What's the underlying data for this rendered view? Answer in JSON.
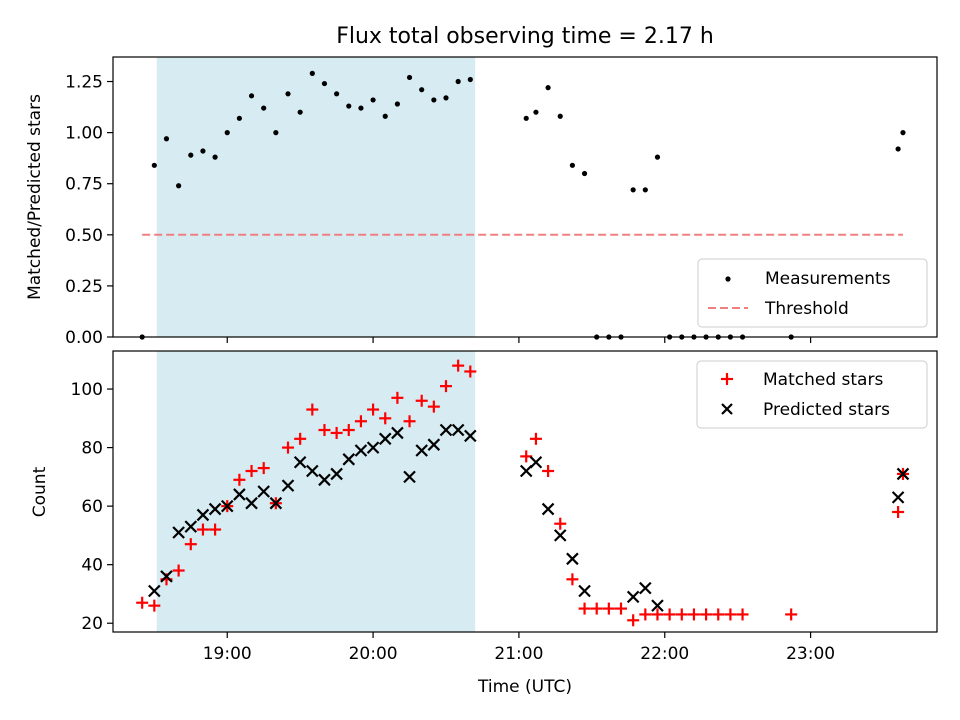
{
  "title": "Flux total observing time = 2.17 h",
  "colors": {
    "shade": "#add8e6",
    "threshold": "#f08080",
    "matched": "#ff0000",
    "predicted": "#000000",
    "measurement": "#000000"
  },
  "chart_data": [
    {
      "type": "scatter",
      "title": "Flux total observing time = 2.17 h",
      "xlabel": "",
      "ylabel": "Matched/Predicted stars",
      "xlim": [
        "18:13",
        "23:52"
      ],
      "ylim": [
        0,
        1.37
      ],
      "y_ticks": [
        0.0,
        0.25,
        0.5,
        0.75,
        1.0,
        1.25
      ],
      "y_tick_labels": [
        "0.00",
        "0.25",
        "0.50",
        "0.75",
        "1.00",
        "1.25"
      ],
      "shaded_interval": [
        "18:31",
        "20:42"
      ],
      "legend": {
        "position": "lower-right",
        "entries": [
          "Measurements",
          "Threshold"
        ]
      },
      "series": [
        {
          "name": "Measurements",
          "marker": "dot",
          "points": [
            [
              "18:25",
              0.0
            ],
            [
              "18:30",
              0.84
            ],
            [
              "18:35",
              0.97
            ],
            [
              "18:40",
              0.74
            ],
            [
              "18:45",
              0.89
            ],
            [
              "18:50",
              0.91
            ],
            [
              "18:55",
              0.88
            ],
            [
              "19:00",
              1.0
            ],
            [
              "19:05",
              1.07
            ],
            [
              "19:10",
              1.18
            ],
            [
              "19:15",
              1.12
            ],
            [
              "19:20",
              1.0
            ],
            [
              "19:25",
              1.19
            ],
            [
              "19:30",
              1.1
            ],
            [
              "19:35",
              1.29
            ],
            [
              "19:40",
              1.24
            ],
            [
              "19:45",
              1.19
            ],
            [
              "19:50",
              1.13
            ],
            [
              "19:55",
              1.12
            ],
            [
              "20:00",
              1.16
            ],
            [
              "20:05",
              1.08
            ],
            [
              "20:10",
              1.14
            ],
            [
              "20:15",
              1.27
            ],
            [
              "20:20",
              1.21
            ],
            [
              "20:25",
              1.16
            ],
            [
              "20:30",
              1.17
            ],
            [
              "20:35",
              1.25
            ],
            [
              "20:40",
              1.26
            ],
            [
              "21:03",
              1.07
            ],
            [
              "21:07",
              1.1
            ],
            [
              "21:12",
              1.22
            ],
            [
              "21:17",
              1.08
            ],
            [
              "21:22",
              0.84
            ],
            [
              "21:27",
              0.8
            ],
            [
              "21:32",
              0.0
            ],
            [
              "21:37",
              0.0
            ],
            [
              "21:42",
              0.0
            ],
            [
              "21:47",
              0.72
            ],
            [
              "21:52",
              0.72
            ],
            [
              "21:57",
              0.88
            ],
            [
              "22:02",
              0.0
            ],
            [
              "22:07",
              0.0
            ],
            [
              "22:12",
              0.0
            ],
            [
              "22:17",
              0.0
            ],
            [
              "22:22",
              0.0
            ],
            [
              "22:27",
              0.0
            ],
            [
              "22:32",
              0.0
            ],
            [
              "22:52",
              0.0
            ],
            [
              "23:36",
              0.92
            ],
            [
              "23:38",
              1.0
            ]
          ]
        },
        {
          "name": "Threshold",
          "marker": "dashed-line",
          "points": [
            [
              "18:25",
              0.5
            ],
            [
              "23:38",
              0.5
            ]
          ]
        }
      ]
    },
    {
      "type": "scatter",
      "title": "",
      "xlabel": "Time (UTC)",
      "ylabel": "Count",
      "xlim": [
        "18:13",
        "23:52"
      ],
      "ylim": [
        17,
        113
      ],
      "x_ticks": [
        "19:00",
        "20:00",
        "21:00",
        "22:00",
        "23:00"
      ],
      "y_ticks": [
        20,
        40,
        60,
        80,
        100
      ],
      "shaded_interval": [
        "18:31",
        "20:42"
      ],
      "legend": {
        "position": "upper-right",
        "entries": [
          "Matched stars",
          "Predicted stars"
        ]
      },
      "series": [
        {
          "name": "Matched stars",
          "marker": "plus",
          "points": [
            [
              "18:25",
              27
            ],
            [
              "18:30",
              26
            ],
            [
              "18:35",
              35
            ],
            [
              "18:40",
              38
            ],
            [
              "18:45",
              47
            ],
            [
              "18:50",
              52
            ],
            [
              "18:55",
              52
            ],
            [
              "19:00",
              60
            ],
            [
              "19:05",
              69
            ],
            [
              "19:10",
              72
            ],
            [
              "19:15",
              73
            ],
            [
              "19:20",
              61
            ],
            [
              "19:25",
              80
            ],
            [
              "19:30",
              83
            ],
            [
              "19:35",
              93
            ],
            [
              "19:40",
              86
            ],
            [
              "19:45",
              85
            ],
            [
              "19:50",
              86
            ],
            [
              "19:55",
              89
            ],
            [
              "20:00",
              93
            ],
            [
              "20:05",
              90
            ],
            [
              "20:10",
              97
            ],
            [
              "20:15",
              89
            ],
            [
              "20:20",
              96
            ],
            [
              "20:25",
              94
            ],
            [
              "20:30",
              101
            ],
            [
              "20:35",
              108
            ],
            [
              "20:40",
              106
            ],
            [
              "21:03",
              77
            ],
            [
              "21:07",
              83
            ],
            [
              "21:12",
              72
            ],
            [
              "21:17",
              54
            ],
            [
              "21:22",
              35
            ],
            [
              "21:27",
              25
            ],
            [
              "21:32",
              25
            ],
            [
              "21:37",
              25
            ],
            [
              "21:42",
              25
            ],
            [
              "21:47",
              21
            ],
            [
              "21:52",
              23
            ],
            [
              "21:57",
              23
            ],
            [
              "22:02",
              23
            ],
            [
              "22:07",
              23
            ],
            [
              "22:12",
              23
            ],
            [
              "22:17",
              23
            ],
            [
              "22:22",
              23
            ],
            [
              "22:27",
              23
            ],
            [
              "22:32",
              23
            ],
            [
              "22:52",
              23
            ],
            [
              "23:36",
              58
            ],
            [
              "23:38",
              71
            ]
          ]
        },
        {
          "name": "Predicted stars",
          "marker": "x",
          "points": [
            [
              "18:30",
              31
            ],
            [
              "18:35",
              36
            ],
            [
              "18:40",
              51
            ],
            [
              "18:45",
              53
            ],
            [
              "18:50",
              57
            ],
            [
              "18:55",
              59
            ],
            [
              "19:00",
              60
            ],
            [
              "19:05",
              64
            ],
            [
              "19:10",
              61
            ],
            [
              "19:15",
              65
            ],
            [
              "19:20",
              61
            ],
            [
              "19:25",
              67
            ],
            [
              "19:30",
              75
            ],
            [
              "19:35",
              72
            ],
            [
              "19:40",
              69
            ],
            [
              "19:45",
              71
            ],
            [
              "19:50",
              76
            ],
            [
              "19:55",
              79
            ],
            [
              "20:00",
              80
            ],
            [
              "20:05",
              83
            ],
            [
              "20:10",
              85
            ],
            [
              "20:15",
              70
            ],
            [
              "20:20",
              79
            ],
            [
              "20:25",
              81
            ],
            [
              "20:30",
              86
            ],
            [
              "20:35",
              86
            ],
            [
              "20:40",
              84
            ],
            [
              "21:03",
              72
            ],
            [
              "21:07",
              75
            ],
            [
              "21:12",
              59
            ],
            [
              "21:17",
              50
            ],
            [
              "21:22",
              42
            ],
            [
              "21:27",
              31
            ],
            [
              "21:47",
              29
            ],
            [
              "21:52",
              32
            ],
            [
              "21:57",
              26
            ],
            [
              "23:36",
              63
            ],
            [
              "23:38",
              71
            ]
          ]
        }
      ]
    }
  ]
}
